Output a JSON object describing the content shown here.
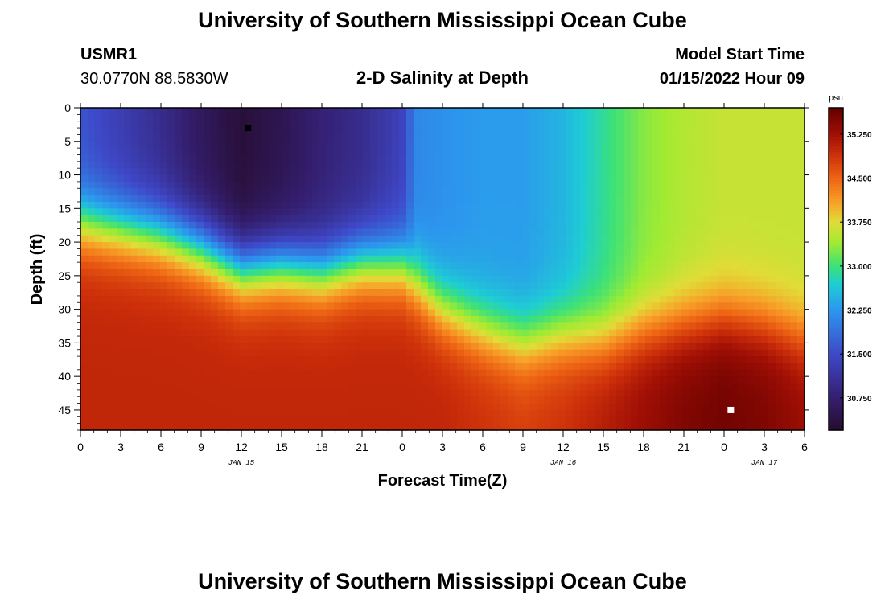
{
  "header": {
    "title": "University of Southern Mississippi Ocean Cube",
    "station_id": "USMR1",
    "station_coords": "30.0770N  88.5830W",
    "subtitle": "2-D Salinity at Depth",
    "model_start_label": "Model Start Time",
    "model_start_time": "01/15/2022 Hour 09"
  },
  "footer": {
    "title": "University of Southern Mississippi Ocean Cube"
  },
  "chart_data": {
    "type": "heatmap",
    "title": "2-D Salinity at Depth",
    "xlabel": "Forecast Time(Z)",
    "ylabel": "Depth (ft)",
    "x_range_hours": [
      0,
      54
    ],
    "y_range_ft": [
      0,
      48
    ],
    "y_inverted": true,
    "x_ticks": [
      0,
      3,
      6,
      9,
      12,
      15,
      18,
      21,
      24,
      27,
      30,
      33,
      36,
      39,
      42,
      45,
      48,
      51,
      54
    ],
    "x_tick_labels": [
      "0",
      "3",
      "6",
      "9",
      "12",
      "15",
      "18",
      "21",
      "0",
      "3",
      "6",
      "9",
      "12",
      "15",
      "18",
      "21",
      "0",
      "3",
      "6"
    ],
    "date_labels": [
      {
        "x": 12,
        "label": "JAN 15"
      },
      {
        "x": 36,
        "label": "JAN 16"
      },
      {
        "x": 51,
        "label": "JAN 17"
      }
    ],
    "y_ticks": [
      0,
      5,
      10,
      15,
      20,
      25,
      30,
      35,
      40,
      45
    ],
    "colorbar": {
      "unit": "psu",
      "min": 30.2,
      "max": 35.7,
      "tick_values": [
        30.75,
        31.5,
        32.25,
        33.0,
        33.75,
        34.5,
        35.25
      ],
      "tick_labels": [
        "30.750",
        "31.500",
        "32.250",
        "33.000",
        "33.750",
        "34.500",
        "35.250"
      ]
    },
    "time_profiles": [
      {
        "x": 0,
        "surface": 31.6,
        "deep": 35.0,
        "interface": 17.0
      },
      {
        "x": 3,
        "surface": 31.3,
        "deep": 35.0,
        "interface": 18.0
      },
      {
        "x": 6,
        "surface": 31.0,
        "deep": 35.0,
        "interface": 19.0
      },
      {
        "x": 9,
        "surface": 30.6,
        "deep": 35.0,
        "interface": 21.0
      },
      {
        "x": 12,
        "surface": 30.3,
        "deep": 35.0,
        "interface": 24.0
      },
      {
        "x": 15,
        "surface": 30.5,
        "deep": 35.0,
        "interface": 23.5
      },
      {
        "x": 18,
        "surface": 30.8,
        "deep": 35.0,
        "interface": 24.5
      },
      {
        "x": 21,
        "surface": 31.0,
        "deep": 35.0,
        "interface": 23.0
      },
      {
        "x": 24,
        "surface": 31.4,
        "deep": 35.0,
        "interface": 23.5
      },
      {
        "x": 25,
        "surface": 32.1,
        "deep": 35.0,
        "interface": 26.0
      },
      {
        "x": 27,
        "surface": 32.2,
        "deep": 35.0,
        "interface": 30.0
      },
      {
        "x": 30,
        "surface": 32.3,
        "deep": 34.9,
        "interface": 33.0
      },
      {
        "x": 33,
        "surface": 32.3,
        "deep": 34.8,
        "interface": 35.0
      },
      {
        "x": 36,
        "surface": 32.5,
        "deep": 34.9,
        "interface": 34.0
      },
      {
        "x": 39,
        "surface": 32.9,
        "deep": 35.1,
        "interface": 34.5
      },
      {
        "x": 42,
        "surface": 33.3,
        "deep": 35.3,
        "interface": 33.0
      },
      {
        "x": 45,
        "surface": 33.5,
        "deep": 35.5,
        "interface": 32.0
      },
      {
        "x": 48,
        "surface": 33.6,
        "deep": 35.6,
        "interface": 31.0
      },
      {
        "x": 51,
        "surface": 33.6,
        "deep": 35.5,
        "interface": 32.0
      },
      {
        "x": 54,
        "surface": 33.6,
        "deep": 35.3,
        "interface": 34.0
      }
    ],
    "markers": [
      {
        "name": "min-marker",
        "x": 12.5,
        "y": 3,
        "color": "#000000"
      },
      {
        "name": "max-marker",
        "x": 48.5,
        "y": 45,
        "color": "#ffffff"
      }
    ]
  }
}
